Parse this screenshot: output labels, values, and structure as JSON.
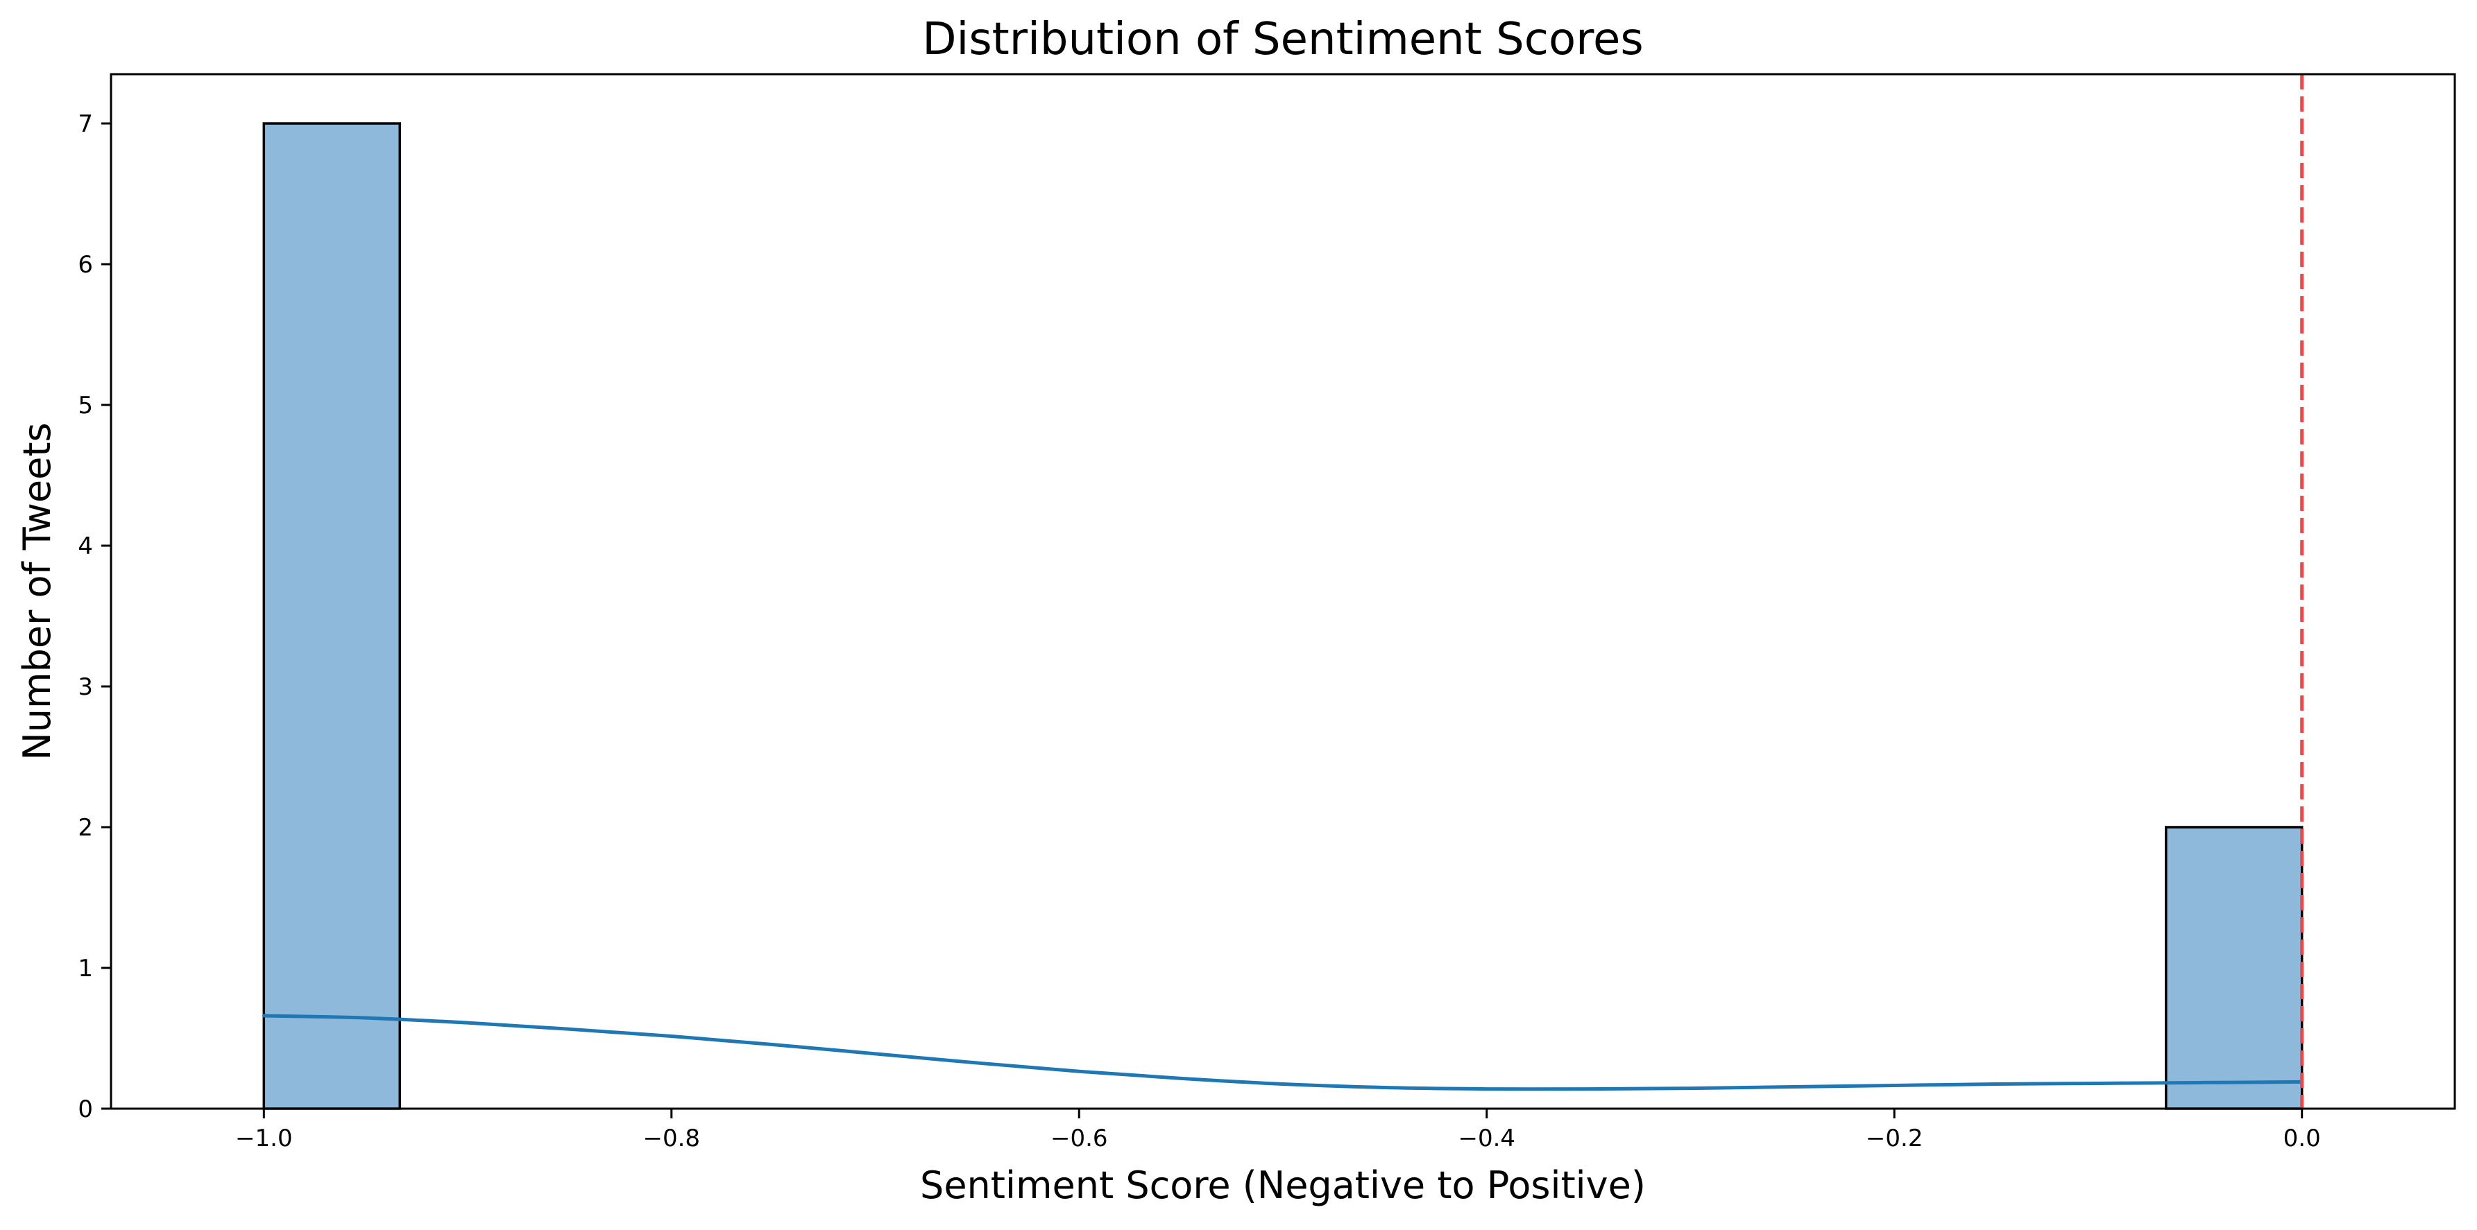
{
  "chart_data": {
    "type": "bar",
    "title": "Distribution of Sentiment Scores",
    "xlabel": "Sentiment Score (Negative to Positive)",
    "ylabel": "Number of Tweets",
    "xlim": [
      -1.075,
      0.075
    ],
    "ylim": [
      0,
      7.35
    ],
    "x_ticks": [
      -1.0,
      -0.8,
      -0.6,
      -0.4,
      -0.2,
      0.0
    ],
    "x_tick_labels": [
      "−1.0",
      "−0.8",
      "−0.6",
      "−0.4",
      "−0.2",
      "0.0"
    ],
    "y_ticks": [
      0,
      1,
      2,
      3,
      4,
      5,
      6,
      7
    ],
    "y_tick_labels": [
      "0",
      "1",
      "2",
      "3",
      "4",
      "5",
      "6",
      "7"
    ],
    "bins": [
      {
        "x0": -1.0,
        "x1": -0.9333,
        "count": 7
      },
      {
        "x0": -0.0667,
        "x1": 0.0,
        "count": 2
      }
    ],
    "kde": {
      "x": [
        -1.0,
        -0.95,
        -0.9,
        -0.85,
        -0.8,
        -0.75,
        -0.7,
        -0.65,
        -0.6,
        -0.55,
        -0.5,
        -0.45,
        -0.4,
        -0.35,
        -0.3,
        -0.25,
        -0.2,
        -0.15,
        -0.1,
        -0.05,
        0.0
      ],
      "y": [
        0.66,
        0.645,
        0.61,
        0.565,
        0.515,
        0.455,
        0.39,
        0.325,
        0.265,
        0.215,
        0.175,
        0.15,
        0.14,
        0.14,
        0.145,
        0.155,
        0.165,
        0.175,
        0.18,
        0.185,
        0.19
      ]
    },
    "reference_line_x": 0.0,
    "grid": false,
    "colors": {
      "bar_fill": "#8fb9da",
      "bar_edge": "#000000",
      "kde_line": "#1f77b4",
      "reference_line": "#ff4040"
    }
  }
}
